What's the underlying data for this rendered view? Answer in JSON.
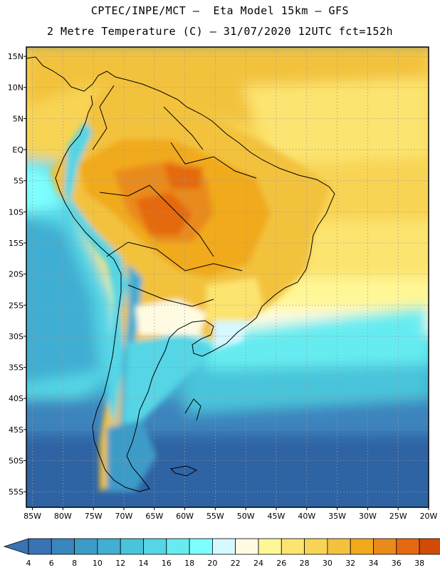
{
  "header": {
    "line1": "CPTEC/INPE/MCT –  Eta Model 15km – GFS",
    "line2": "2 Metre Temperature (C) – 31/07/2020 12UTC fct=152h"
  },
  "map": {
    "lat_labels": [
      "15N",
      "10N",
      "5N",
      "EQ",
      "5S",
      "10S",
      "15S",
      "20S",
      "25S",
      "30S",
      "35S",
      "40S",
      "45S",
      "50S",
      "55S"
    ],
    "lon_labels": [
      "85W",
      "80W",
      "75W",
      "70W",
      "65W",
      "60W",
      "55W",
      "50W",
      "45W",
      "40W",
      "35W",
      "30W",
      "25W",
      "20W"
    ],
    "lat_range": [
      -57.5,
      16.5
    ],
    "lon_range": [
      -86,
      -20
    ]
  },
  "colorbar": {
    "labels": [
      "4",
      "6",
      "8",
      "10",
      "12",
      "14",
      "16",
      "18",
      "20",
      "22",
      "24",
      "26",
      "28",
      "30",
      "32",
      "34",
      "36",
      "38"
    ],
    "colors": [
      "#3a73b4",
      "#3a86be",
      "#3d9bc8",
      "#41aed2",
      "#4ac4da",
      "#55d5e5",
      "#66ecf0",
      "#7dffff",
      "#d6f8ff",
      "#fffbe3",
      "#fff796",
      "#fce470",
      "#f8d454",
      "#f3c23d",
      "#f1aa1d",
      "#e98b1b",
      "#e56910",
      "#d34b06",
      "#c43a0b"
    ]
  }
}
